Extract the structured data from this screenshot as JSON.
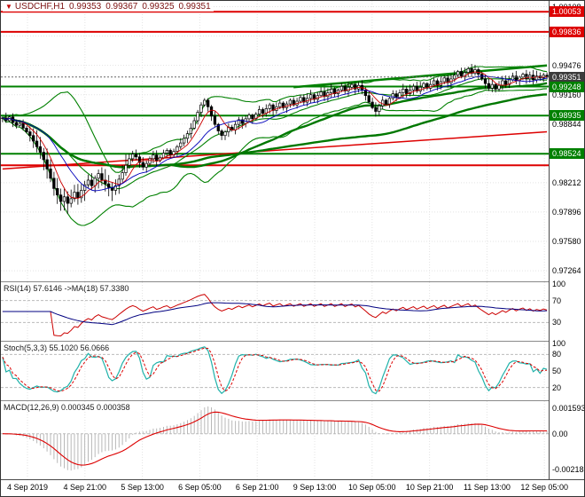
{
  "title_bar": {
    "dropdown_icon": "▼",
    "symbol_period": "USDCHF,H1",
    "open": "0.99353",
    "high": "0.99367",
    "low": "0.99325",
    "close": "0.99351"
  },
  "colors": {
    "up_candle": "#ffffff",
    "down_candle": "#000000",
    "wick": "#000000",
    "bands_green": "#008000",
    "ma_green": "#007800",
    "line_red": "#dd0000",
    "thin_ma_red": "#cc0000",
    "thin_ma_blue": "#0000bb",
    "grid": "#e3e3e3",
    "level_dash": "#bbbbbb",
    "rsi_line": "#cc0000",
    "rsi_ma": "#000080",
    "stoch_k": "#20b2aa",
    "stoch_d": "#dd0000",
    "macd_hist": "#b8b8b8",
    "macd_signal": "#dd0000",
    "current_price_line": "#666666",
    "badge_current_bg": "#3c3c3c",
    "badge_red_bg": "#dd0000",
    "badge_green_bg": "#008000"
  },
  "chart_data": {
    "type": "candlestick",
    "symbol": "USDCHF",
    "timeframe": "H1",
    "price_axis": {
      "top": 1.0017,
      "bottom": 0.9715,
      "labels": [
        "1.00108",
        "0.99792",
        "0.99476",
        "0.99160",
        "0.98844",
        "0.98528",
        "0.98212",
        "0.97896",
        "0.97580",
        "0.97264"
      ]
    },
    "badges": [
      {
        "text": "1.00053",
        "price": 1.00053,
        "bg": "#dd0000"
      },
      {
        "text": "0.99836",
        "price": 0.99836,
        "bg": "#dd0000"
      },
      {
        "text": "0.99351",
        "price": 0.99351,
        "bg": "#3c3c3c"
      },
      {
        "text": "0.99248",
        "price": 0.99248,
        "bg": "#008000"
      },
      {
        "text": "0.98935",
        "price": 0.98935,
        "bg": "#008000"
      },
      {
        "text": "0.98524",
        "price": 0.98524,
        "bg": "#008000"
      }
    ],
    "h_lines": [
      {
        "price": 1.00053,
        "color": "#dd0000",
        "w": 2
      },
      {
        "price": 0.99836,
        "color": "#dd0000",
        "w": 2
      },
      {
        "price": 0.99248,
        "color": "#008000",
        "w": 2
      },
      {
        "price": 0.98935,
        "color": "#008000",
        "w": 2
      },
      {
        "price": 0.98524,
        "color": "#008000",
        "w": 2
      },
      {
        "price": 0.984,
        "color": "#dd0000",
        "w": 2
      },
      {
        "price": 0.99351,
        "color": "#666666",
        "w": 1,
        "dash": "2,2"
      }
    ],
    "trendlines": [
      {
        "from": [
          0,
          0.9836
        ],
        "to": [
          159,
          0.9876
        ],
        "color": "#dd0000",
        "w": 1.5
      },
      {
        "from": [
          85,
          0.9924
        ],
        "to": [
          159,
          0.99475
        ],
        "color": "#008000",
        "w": 2.5
      }
    ],
    "closes": [
      0.9891,
      0.9888,
      0.9892,
      0.9886,
      0.9883,
      0.9885,
      0.988,
      0.9876,
      0.9872,
      0.9866,
      0.986,
      0.9854,
      0.9846,
      0.9836,
      0.9826,
      0.9815,
      0.9808,
      0.9801,
      0.9806,
      0.9799,
      0.9804,
      0.9811,
      0.9805,
      0.9813,
      0.9819,
      0.9824,
      0.9818,
      0.9826,
      0.9831,
      0.9824,
      0.982,
      0.9816,
      0.9813,
      0.9818,
      0.9825,
      0.9832,
      0.984,
      0.9847,
      0.9852,
      0.9849,
      0.9843,
      0.9838,
      0.9842,
      0.9847,
      0.9851,
      0.9845,
      0.9848,
      0.9853,
      0.9856,
      0.9851,
      0.9855,
      0.986,
      0.9864,
      0.9869,
      0.9874,
      0.988,
      0.9888,
      0.9897,
      0.9905,
      0.991,
      0.9903,
      0.9893,
      0.9884,
      0.9877,
      0.9872,
      0.9876,
      0.9881,
      0.9878,
      0.9884,
      0.9889,
      0.9885,
      0.989,
      0.9894,
      0.989,
      0.9895,
      0.99,
      0.9896,
      0.9901,
      0.9905,
      0.9899,
      0.9903,
      0.9907,
      0.9902,
      0.9906,
      0.991,
      0.9905,
      0.9909,
      0.9913,
      0.9908,
      0.9912,
      0.9916,
      0.9911,
      0.9915,
      0.9919,
      0.9914,
      0.9918,
      0.9922,
      0.9917,
      0.9921,
      0.9925,
      0.992,
      0.9924,
      0.9927,
      0.9922,
      0.9926,
      0.9921,
      0.9915,
      0.9908,
      0.9902,
      0.9898,
      0.9904,
      0.991,
      0.9906,
      0.9912,
      0.9917,
      0.9913,
      0.9918,
      0.9922,
      0.9917,
      0.9921,
      0.9925,
      0.992,
      0.9924,
      0.9928,
      0.9923,
      0.9927,
      0.9931,
      0.9926,
      0.993,
      0.9934,
      0.9929,
      0.9933,
      0.9937,
      0.9941,
      0.9936,
      0.994,
      0.9944,
      0.9939,
      0.9943,
      0.9938,
      0.9933,
      0.9928,
      0.9923,
      0.9927,
      0.9922,
      0.9926,
      0.9931,
      0.9927,
      0.9932,
      0.9936,
      0.9931,
      0.9935,
      0.9938,
      0.9933,
      0.9937,
      0.9932,
      0.9936,
      0.9934,
      0.9937,
      0.9935
    ],
    "overlays": {
      "bollinger_period": 20,
      "bollinger_dev": 2,
      "ma_fast": 50,
      "ma_slow": 100,
      "ma_thin_red": 6,
      "ma_thin_blue": 14
    },
    "indicators": {
      "rsi": {
        "label": "RSI(14) 57.6146 ->MA(18) 57.3380",
        "period": 14,
        "ma_period": 18,
        "levels": [
          70,
          30
        ],
        "axis_labels": [
          {
            "v": 100,
            "text": "100"
          },
          {
            "v": 70,
            "text": "70"
          },
          {
            "v": 30,
            "text": "30"
          }
        ]
      },
      "stoch": {
        "label": "Stoch(5,3,3) 55.1020 56.0666",
        "k": 5,
        "slowing": 3,
        "d": 3,
        "levels": [
          80,
          20
        ],
        "axis_labels": [
          {
            "v": 100,
            "text": "100"
          },
          {
            "v": 80,
            "text": "80"
          },
          {
            "v": 50,
            "text": "50"
          },
          {
            "v": 20,
            "text": "20"
          }
        ]
      },
      "macd": {
        "label": "MACD(12,26,9) 0.000345 0.000358",
        "fast": 12,
        "slow": 26,
        "signal": 9,
        "scale_top": 0.0019,
        "scale_bottom": -0.0027,
        "axis_labels": [
          {
            "v": 0.001593,
            "text": "0.001593"
          },
          {
            "v": 0,
            "text": "0.00"
          },
          {
            "v": -0.002183,
            "text": "-0.002183"
          }
        ]
      }
    },
    "time_axis": {
      "labels": [
        "4 Sep 2019",
        "4 Sep 21:00",
        "5 Sep 13:00",
        "6 Sep 05:00",
        "6 Sep 21:00",
        "9 Sep 13:00",
        "10 Sep 05:00",
        "10 Sep 21:00",
        "11 Sep 13:00",
        "12 Sep 05:00"
      ]
    }
  }
}
